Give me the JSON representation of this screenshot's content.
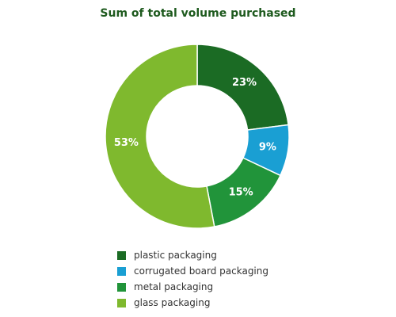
{
  "chart_data": {
    "type": "pie",
    "variant": "donut",
    "title": "Sum of total volume purchased",
    "categories": [
      "plastic packaging",
      "corrugated board packaging",
      "metal packaging",
      "glass packaging"
    ],
    "values": [
      23,
      9,
      15,
      53
    ],
    "labels": [
      "23%",
      "9%",
      "15%",
      "53%"
    ],
    "colors": [
      "#1b6b24",
      "#1a9fd3",
      "#21943a",
      "#7fb92e"
    ],
    "legend_position": "bottom"
  }
}
